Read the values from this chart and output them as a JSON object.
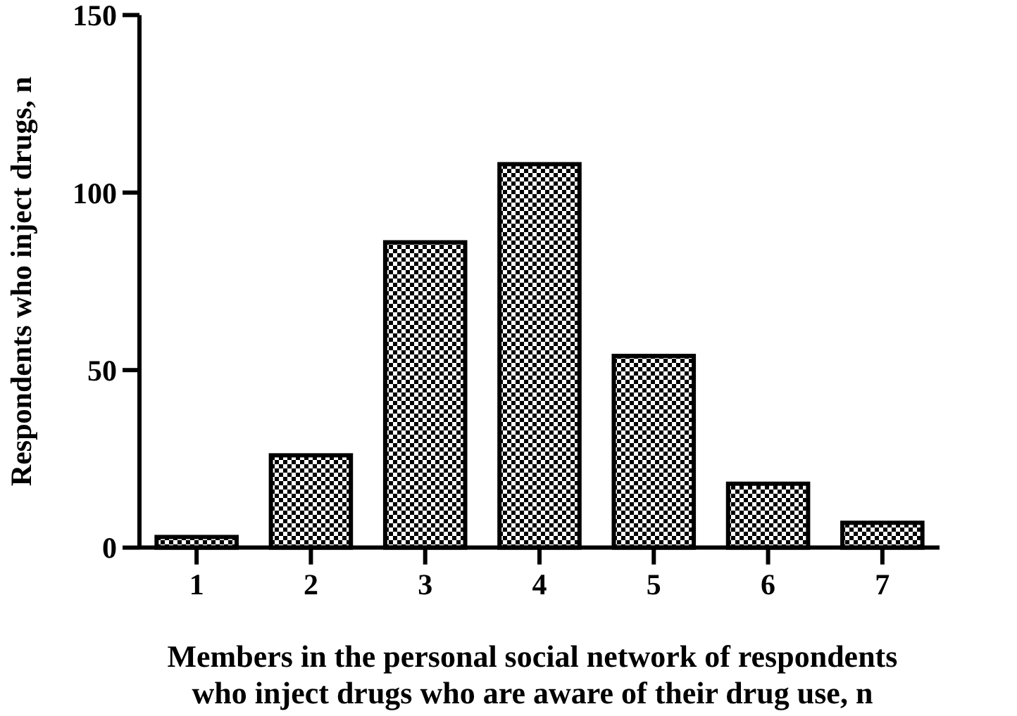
{
  "chart_data": {
    "type": "bar",
    "xlabel": "Members in the personal social network of respondents\nwho inject drugs who are aware of their drug use, n",
    "ylabel": "Respondents who inject drugs, n",
    "categories": [
      "1",
      "2",
      "3",
      "4",
      "5",
      "6",
      "7"
    ],
    "values": [
      3,
      26,
      86,
      108,
      54,
      18,
      7
    ],
    "color": "#000000",
    "ylim": [
      0,
      150
    ],
    "yticks": [
      0,
      50,
      100,
      150
    ],
    "grid": false
  }
}
